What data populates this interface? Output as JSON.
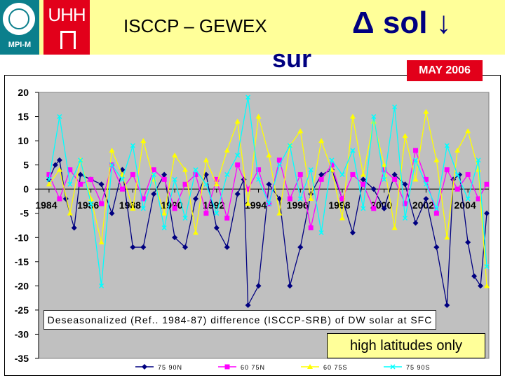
{
  "header": {
    "logo_left": "MPI-M",
    "logo_right": "UHH",
    "title": "ISCCP – GEWEX",
    "symbol": "Δ sol ↓",
    "subscript": "sur",
    "date": "MAY 2006"
  },
  "caption": "Deseasonalized (Ref.. 1984-87) difference (ISCCP-SRB) of DW solar at SFC",
  "note": "high latitudes only",
  "colors": {
    "background": "#ffffff",
    "header_band": "#ffff99",
    "plot_area": "#c0c0c0",
    "accent_red": "#e2001a",
    "title_blue": "#000080"
  },
  "chart_data": {
    "type": "line",
    "title": "Deseasonalized (Ref.. 1984-87) difference (ISCCP-SRB) of DW solar at SFC",
    "xlabel": "",
    "ylabel": "",
    "xlim": [
      1983.5,
      2005.0
    ],
    "ylim": [
      -35,
      20
    ],
    "y_ticks": [
      20,
      15,
      10,
      5,
      0,
      -5,
      -10,
      -15,
      -20,
      -25,
      -30,
      -35
    ],
    "x_ticks": [
      1984,
      1986,
      1988,
      1990,
      1992,
      1994,
      1996,
      1998,
      2000,
      2002,
      2004
    ],
    "grid": false,
    "legend_position": "bottom",
    "series": [
      {
        "name": "75 90N",
        "color": "#000080",
        "marker": "diamond",
        "x": [
          1984.0,
          1984.3,
          1984.5,
          1984.8,
          1985.2,
          1985.5,
          1986.0,
          1986.5,
          1987.0,
          1987.5,
          1988.0,
          1988.5,
          1989.0,
          1989.5,
          1990.0,
          1990.5,
          1991.0,
          1991.5,
          1992.0,
          1992.5,
          1993.0,
          1993.3,
          1993.5,
          1994.0,
          1994.5,
          1995.0,
          1995.5,
          1996.0,
          1996.5,
          1997.0,
          1997.5,
          1998.0,
          1998.5,
          1999.0,
          1999.5,
          2000.0,
          2000.5,
          2001.0,
          2001.5,
          2002.0,
          2002.5,
          2003.0,
          2003.3,
          2003.6,
          2004.0,
          2004.3,
          2004.6,
          2004.9
        ],
        "y": [
          2,
          5,
          6,
          -2,
          -8,
          3,
          2,
          1,
          -5,
          4,
          -12,
          -12,
          -1,
          3,
          -10,
          -12,
          -2,
          3,
          -8,
          -12,
          -1,
          2,
          -24,
          -20,
          1,
          -2,
          -20,
          -12,
          -1,
          3,
          4,
          -2,
          -9,
          2,
          0,
          -4,
          3,
          1,
          -7,
          -2,
          -12,
          -24,
          2,
          3,
          -11,
          -18,
          -20,
          -5
        ]
      },
      {
        "name": "60 75N",
        "color": "#ff00ff",
        "marker": "square",
        "x": [
          1984.0,
          1984.5,
          1985.0,
          1985.5,
          1986.0,
          1986.5,
          1987.0,
          1987.5,
          1988.0,
          1988.5,
          1989.0,
          1989.5,
          1990.0,
          1990.5,
          1991.0,
          1991.5,
          1992.0,
          1992.5,
          1993.0,
          1993.5,
          1994.0,
          1994.5,
          1995.0,
          1995.5,
          1996.0,
          1996.5,
          1997.0,
          1997.5,
          1998.0,
          1998.5,
          1999.0,
          1999.5,
          2000.0,
          2000.5,
          2001.0,
          2001.5,
          2002.0,
          2002.5,
          2003.0,
          2003.5,
          2004.0,
          2004.5,
          2004.9
        ],
        "y": [
          3,
          -2,
          4,
          1,
          2,
          -3,
          5,
          0,
          3,
          -2,
          4,
          2,
          -4,
          1,
          3,
          -5,
          2,
          -6,
          5,
          0,
          4,
          -3,
          6,
          -2,
          3,
          -8,
          2,
          5,
          -2,
          3,
          1,
          -4,
          4,
          2,
          -3,
          8,
          2,
          -5,
          4,
          0,
          3,
          -2,
          1
        ]
      },
      {
        "name": "60 75S",
        "color": "#ffff00",
        "marker": "triangle",
        "x": [
          1984.0,
          1984.5,
          1985.0,
          1985.5,
          1986.0,
          1986.5,
          1987.0,
          1987.5,
          1988.0,
          1988.5,
          1989.0,
          1989.5,
          1990.0,
          1990.5,
          1991.0,
          1991.5,
          1992.0,
          1992.5,
          1993.0,
          1993.5,
          1994.0,
          1994.5,
          1995.0,
          1995.5,
          1996.0,
          1996.5,
          1997.0,
          1997.5,
          1998.0,
          1998.5,
          1999.0,
          1999.5,
          2000.0,
          2000.5,
          2001.0,
          2001.5,
          2002.0,
          2002.5,
          2003.0,
          2003.5,
          2004.0,
          2004.5,
          2004.9
        ],
        "y": [
          1,
          4,
          -5,
          6,
          -2,
          -11,
          8,
          3,
          -4,
          10,
          2,
          -5,
          7,
          4,
          -9,
          6,
          1,
          8,
          14,
          -3,
          15,
          7,
          -5,
          9,
          12,
          -2,
          10,
          4,
          -6,
          15,
          3,
          14,
          5,
          -8,
          11,
          2,
          16,
          6,
          -10,
          8,
          12,
          4,
          -20
        ]
      },
      {
        "name": "75 90S",
        "color": "#00ffff",
        "marker": "cross",
        "x": [
          1984.0,
          1984.5,
          1985.0,
          1985.5,
          1986.0,
          1986.5,
          1987.0,
          1987.5,
          1988.0,
          1988.5,
          1989.0,
          1989.5,
          1990.0,
          1990.5,
          1991.0,
          1991.5,
          1992.0,
          1992.5,
          1993.0,
          1993.5,
          1994.0,
          1994.5,
          1995.0,
          1995.5,
          1996.0,
          1996.5,
          1997.0,
          1997.5,
          1998.0,
          1998.5,
          1999.0,
          1999.5,
          2000.0,
          2000.5,
          2001.0,
          2001.5,
          2002.0,
          2002.5,
          2003.0,
          2003.5,
          2004.0,
          2004.5,
          2004.9
        ],
        "y": [
          2,
          15,
          1,
          6,
          -3,
          -20,
          5,
          2,
          9,
          -4,
          3,
          -8,
          2,
          -6,
          4,
          1,
          -5,
          3,
          7,
          19,
          2,
          -3,
          5,
          9,
          -2,
          4,
          -9,
          6,
          3,
          8,
          -4,
          15,
          2,
          17,
          -6,
          6,
          1,
          -4,
          9,
          3,
          -2,
          6,
          -16
        ]
      }
    ]
  }
}
